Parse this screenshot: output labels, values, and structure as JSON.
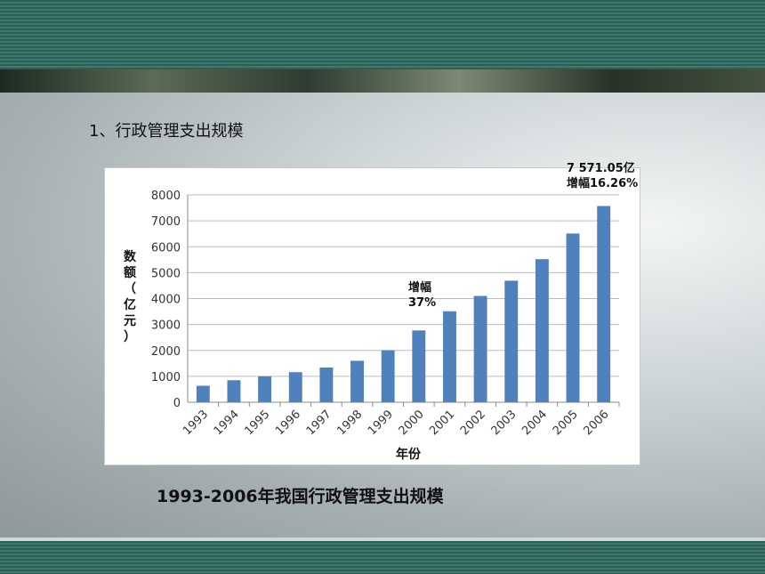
{
  "slide": {
    "heading": "1、行政管理支出规模",
    "caption": "1993-2006年我国行政管理支出规模"
  },
  "annotations": {
    "top_line1": "7 571.05亿",
    "top_line2": "增幅16.26%",
    "mid_line1": "增幅",
    "mid_line2": "37%"
  },
  "chart_data": {
    "type": "bar",
    "categories": [
      "1993",
      "1994",
      "1995",
      "1996",
      "1997",
      "1998",
      "1999",
      "2000",
      "2001",
      "2002",
      "2003",
      "2004",
      "2005",
      "2006"
    ],
    "values": [
      635,
      850,
      1000,
      1160,
      1340,
      1600,
      2000,
      2770,
      3510,
      4100,
      4690,
      5520,
      6510,
      7571
    ],
    "ylabel": "数额（亿元）",
    "xlabel": "年份",
    "ylim": [
      0,
      8000
    ],
    "yticks": [
      0,
      1000,
      2000,
      3000,
      4000,
      5000,
      6000,
      7000,
      8000
    ],
    "grid": true,
    "bar_color": "#4f81bd"
  }
}
